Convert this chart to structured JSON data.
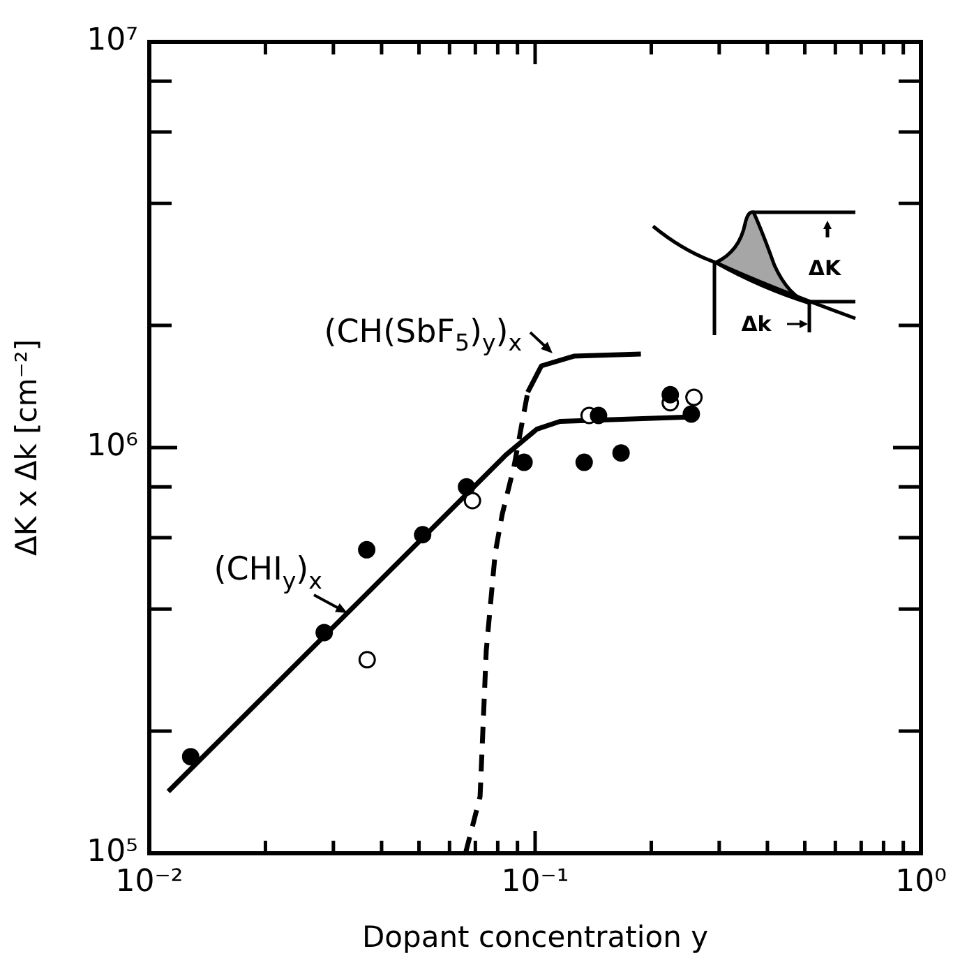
{
  "chart_data": {
    "type": "scatter",
    "xlabel": "Dopant concentration y",
    "ylabel": "ΔK x Δk [cm⁻²]",
    "log": "xy",
    "grid": false,
    "legend": false,
    "marker": "circle",
    "xlim": [
      0.01,
      1
    ],
    "ylim": [
      100000,
      10000000
    ],
    "xticks": [
      {
        "value": 0.01,
        "label": "10⁻²"
      },
      {
        "value": 0.02,
        "label": null
      },
      {
        "value": 0.03,
        "label": null
      },
      {
        "value": 0.04,
        "label": null
      },
      {
        "value": 0.05,
        "label": null
      },
      {
        "value": 0.06,
        "label": null
      },
      {
        "value": 0.07,
        "label": null
      },
      {
        "value": 0.08,
        "label": null
      },
      {
        "value": 0.09,
        "label": null
      },
      {
        "value": 0.1,
        "label": "10⁻¹"
      },
      {
        "value": 0.2,
        "label": null
      },
      {
        "value": 0.3,
        "label": null
      },
      {
        "value": 0.4,
        "label": null
      },
      {
        "value": 0.5,
        "label": null
      },
      {
        "value": 0.6,
        "label": null
      },
      {
        "value": 0.7,
        "label": null
      },
      {
        "value": 0.8,
        "label": null
      },
      {
        "value": 0.9,
        "label": null
      },
      {
        "value": 1,
        "label": "10⁰"
      }
    ],
    "yticks": [
      {
        "value": 100000,
        "label": "10⁵"
      },
      {
        "value": 200000,
        "label": null
      },
      {
        "value": 400000,
        "label": null
      },
      {
        "value": 600000,
        "label": null
      },
      {
        "value": 800000,
        "label": null
      },
      {
        "value": 1000000,
        "label": "10⁶"
      },
      {
        "value": 2000000,
        "label": null
      },
      {
        "value": 4000000,
        "label": null
      },
      {
        "value": 6000000,
        "label": null
      },
      {
        "value": 8000000,
        "label": null
      },
      {
        "value": 10000000,
        "label": "10⁷"
      }
    ],
    "series": [
      {
        "type": "scatter",
        "color": "#000000",
        "x": [
          0.0128,
          0.0284,
          0.0366,
          0.0511,
          0.0664,
          0.0936,
          0.134,
          0.146,
          0.167,
          0.224,
          0.254
        ],
        "values": [
          173000,
          350000,
          560000,
          610000,
          800000,
          920000,
          920000,
          1200000,
          970000,
          1350000,
          1210000
        ]
      },
      {
        "type": "scatter",
        "color": "#ffffff",
        "x": [
          0.0367,
          0.0688,
          0.138,
          0.224,
          0.258
        ],
        "values": [
          300000,
          740000,
          1200000,
          1290000,
          1330000
        ]
      },
      {
        "type": "line",
        "color": "#000000",
        "line_style": "solid",
        "marker": "none",
        "x": [
          0.0112,
          0.0841,
          0.101,
          0.116,
          0.258
        ],
        "values": [
          142000,
          960000,
          1110000,
          1160000,
          1190000
        ]
      },
      {
        "type": "line",
        "color": "#000000",
        "line_style": "dashed",
        "marker": "none",
        "x": [
          0.066,
          0.072,
          0.0747,
          0.0788,
          0.0822,
          0.0881,
          0.0957
        ],
        "values": [
          100000,
          138000,
          316000,
          550000,
          686000,
          896000,
          1370000
        ]
      },
      {
        "type": "line",
        "color": "#000000",
        "line_style": "solid",
        "marker": "none",
        "x": [
          0.0957,
          0.1038,
          0.126,
          0.188
        ],
        "values": [
          1370000,
          1590000,
          1680000,
          1700000
        ]
      }
    ],
    "annotations": [
      {
        "text": "(CH(SbF$_{5}$)$_{y}$)$_{x}$",
        "x": 0.111,
        "y": 1710000
      },
      {
        "text": "(CHI$_{y}$)$_{x}$",
        "x": 0.0326,
        "y": 391000
      },
      "ΔK",
      "Δk"
    ]
  }
}
